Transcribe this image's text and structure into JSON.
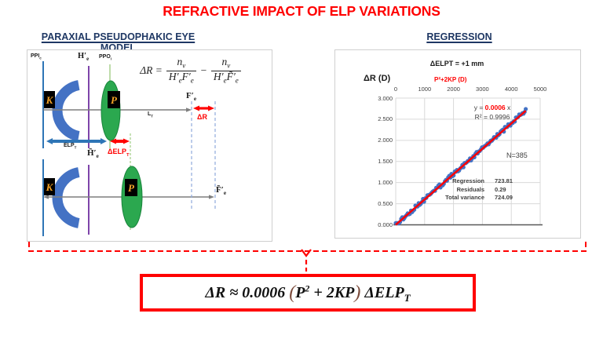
{
  "title": "REFRACTIVE IMPACT OF ELP VARIATIONS",
  "left_panel": {
    "heading": "PARAXIAL PSEUDOPHAKIC EYE MODEL",
    "formula": {
      "lhs": "ΔR =",
      "n1t": "n",
      "n1s": "v",
      "d1at": "H′",
      "d1as": "e",
      "d1bt": "F′",
      "d1bs": "e",
      "minus": "−",
      "n2t": "n",
      "n2s": "v",
      "d2at": "H′",
      "d2as": "e",
      "d2bt": "F̃′",
      "d2bs": "e"
    },
    "labels": {
      "ppi_t": "PPI",
      "ppi_s": "c",
      "hprime_t": "H′",
      "hprime_s": "e",
      "ppo_t": "PPO",
      "ppo_s": "i",
      "fprime_t": "F′",
      "fprime_s": "e",
      "lt_t": "L",
      "lt_s": "T",
      "delta_r": "ΔR",
      "elp_t": "ELP",
      "elp_s": "T",
      "delp_t": "ΔELP",
      "delp_s": "T",
      "htilde_t": "H̃′",
      "htilde_s": "e",
      "ftilde_t": "F̃′",
      "ftilde_s": "e",
      "k": "K",
      "p": "P"
    }
  },
  "right_panel": {
    "heading": "REGRESSION"
  },
  "chart_data": {
    "type": "scatter",
    "title": "ΔELPT = +1 mm",
    "ylabel": "ΔR (D)",
    "xlabel": "P²+2KP  (D)",
    "x_ticks": [
      0,
      1000,
      2000,
      3000,
      4000,
      5000
    ],
    "y_tick_labels": [
      "3.000",
      "2.500",
      "2.000",
      "1.500",
      "1.000",
      "0.500",
      "0.000"
    ],
    "xlim": [
      0,
      5000
    ],
    "ylim": [
      0,
      3
    ],
    "grid": true,
    "legend": "none",
    "fit": {
      "prefix": "y = ",
      "slope_text": "0.0006",
      "suffix": " x",
      "slope": 0.0006,
      "r2": "R² = 0.9996"
    },
    "n_label": "N=385",
    "scatter": {
      "x_min": 0,
      "x_max": 4500,
      "n_points": 120,
      "jitter": 0.05
    },
    "stats_table": [
      {
        "label": "Regression",
        "value": "723.81"
      },
      {
        "label": "Residuals",
        "value": "0.29"
      },
      {
        "label": "Total variance",
        "value": "724.09"
      }
    ],
    "colors": {
      "scatter": "#4472C4",
      "fit": "#FF0000",
      "grid": "#D9D9D9",
      "axis": "#595959"
    }
  },
  "bottom_formula": {
    "p1": "ΔR ≈ 0.0006 ",
    "open": "(",
    "p2": "P",
    "sup": "2",
    "p3": " + 2KP",
    "close": ")",
    "p4": " ΔELP",
    "sub": "T"
  }
}
